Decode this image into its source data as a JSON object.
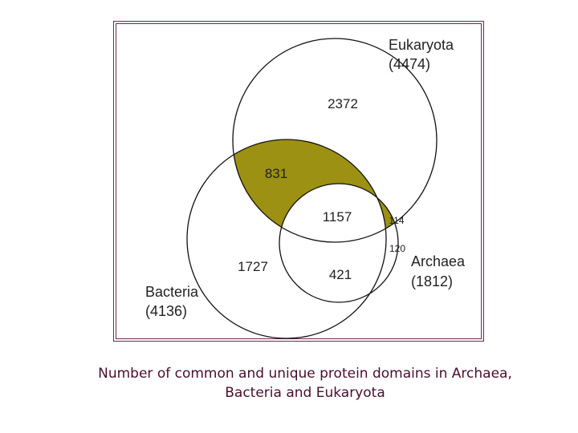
{
  "diagram": {
    "sets": {
      "eukaryota": {
        "name": "Eukaryota",
        "total": "(4474)"
      },
      "bacteria": {
        "name": "Bacteria",
        "total": "(4136)"
      },
      "archaea": {
        "name": "Archaea",
        "total": "(1812)"
      }
    },
    "regions": {
      "eukaryota_only": "2372",
      "bacteria_eukaryota": "831",
      "all_three": "1157",
      "archaea_eukaryota": "114",
      "archaea_only": "120",
      "bacteria_only": "1727",
      "bacteria_archaea": "421"
    },
    "colors": {
      "highlight": "#9c9113",
      "outline": "#111111",
      "frame": "#6b2a4a",
      "caption": "#4a0d2c"
    }
  },
  "caption": {
    "line1": "Number of common and unique protein domains in Archaea,",
    "line2": "Bacteria and Eukaryota"
  }
}
